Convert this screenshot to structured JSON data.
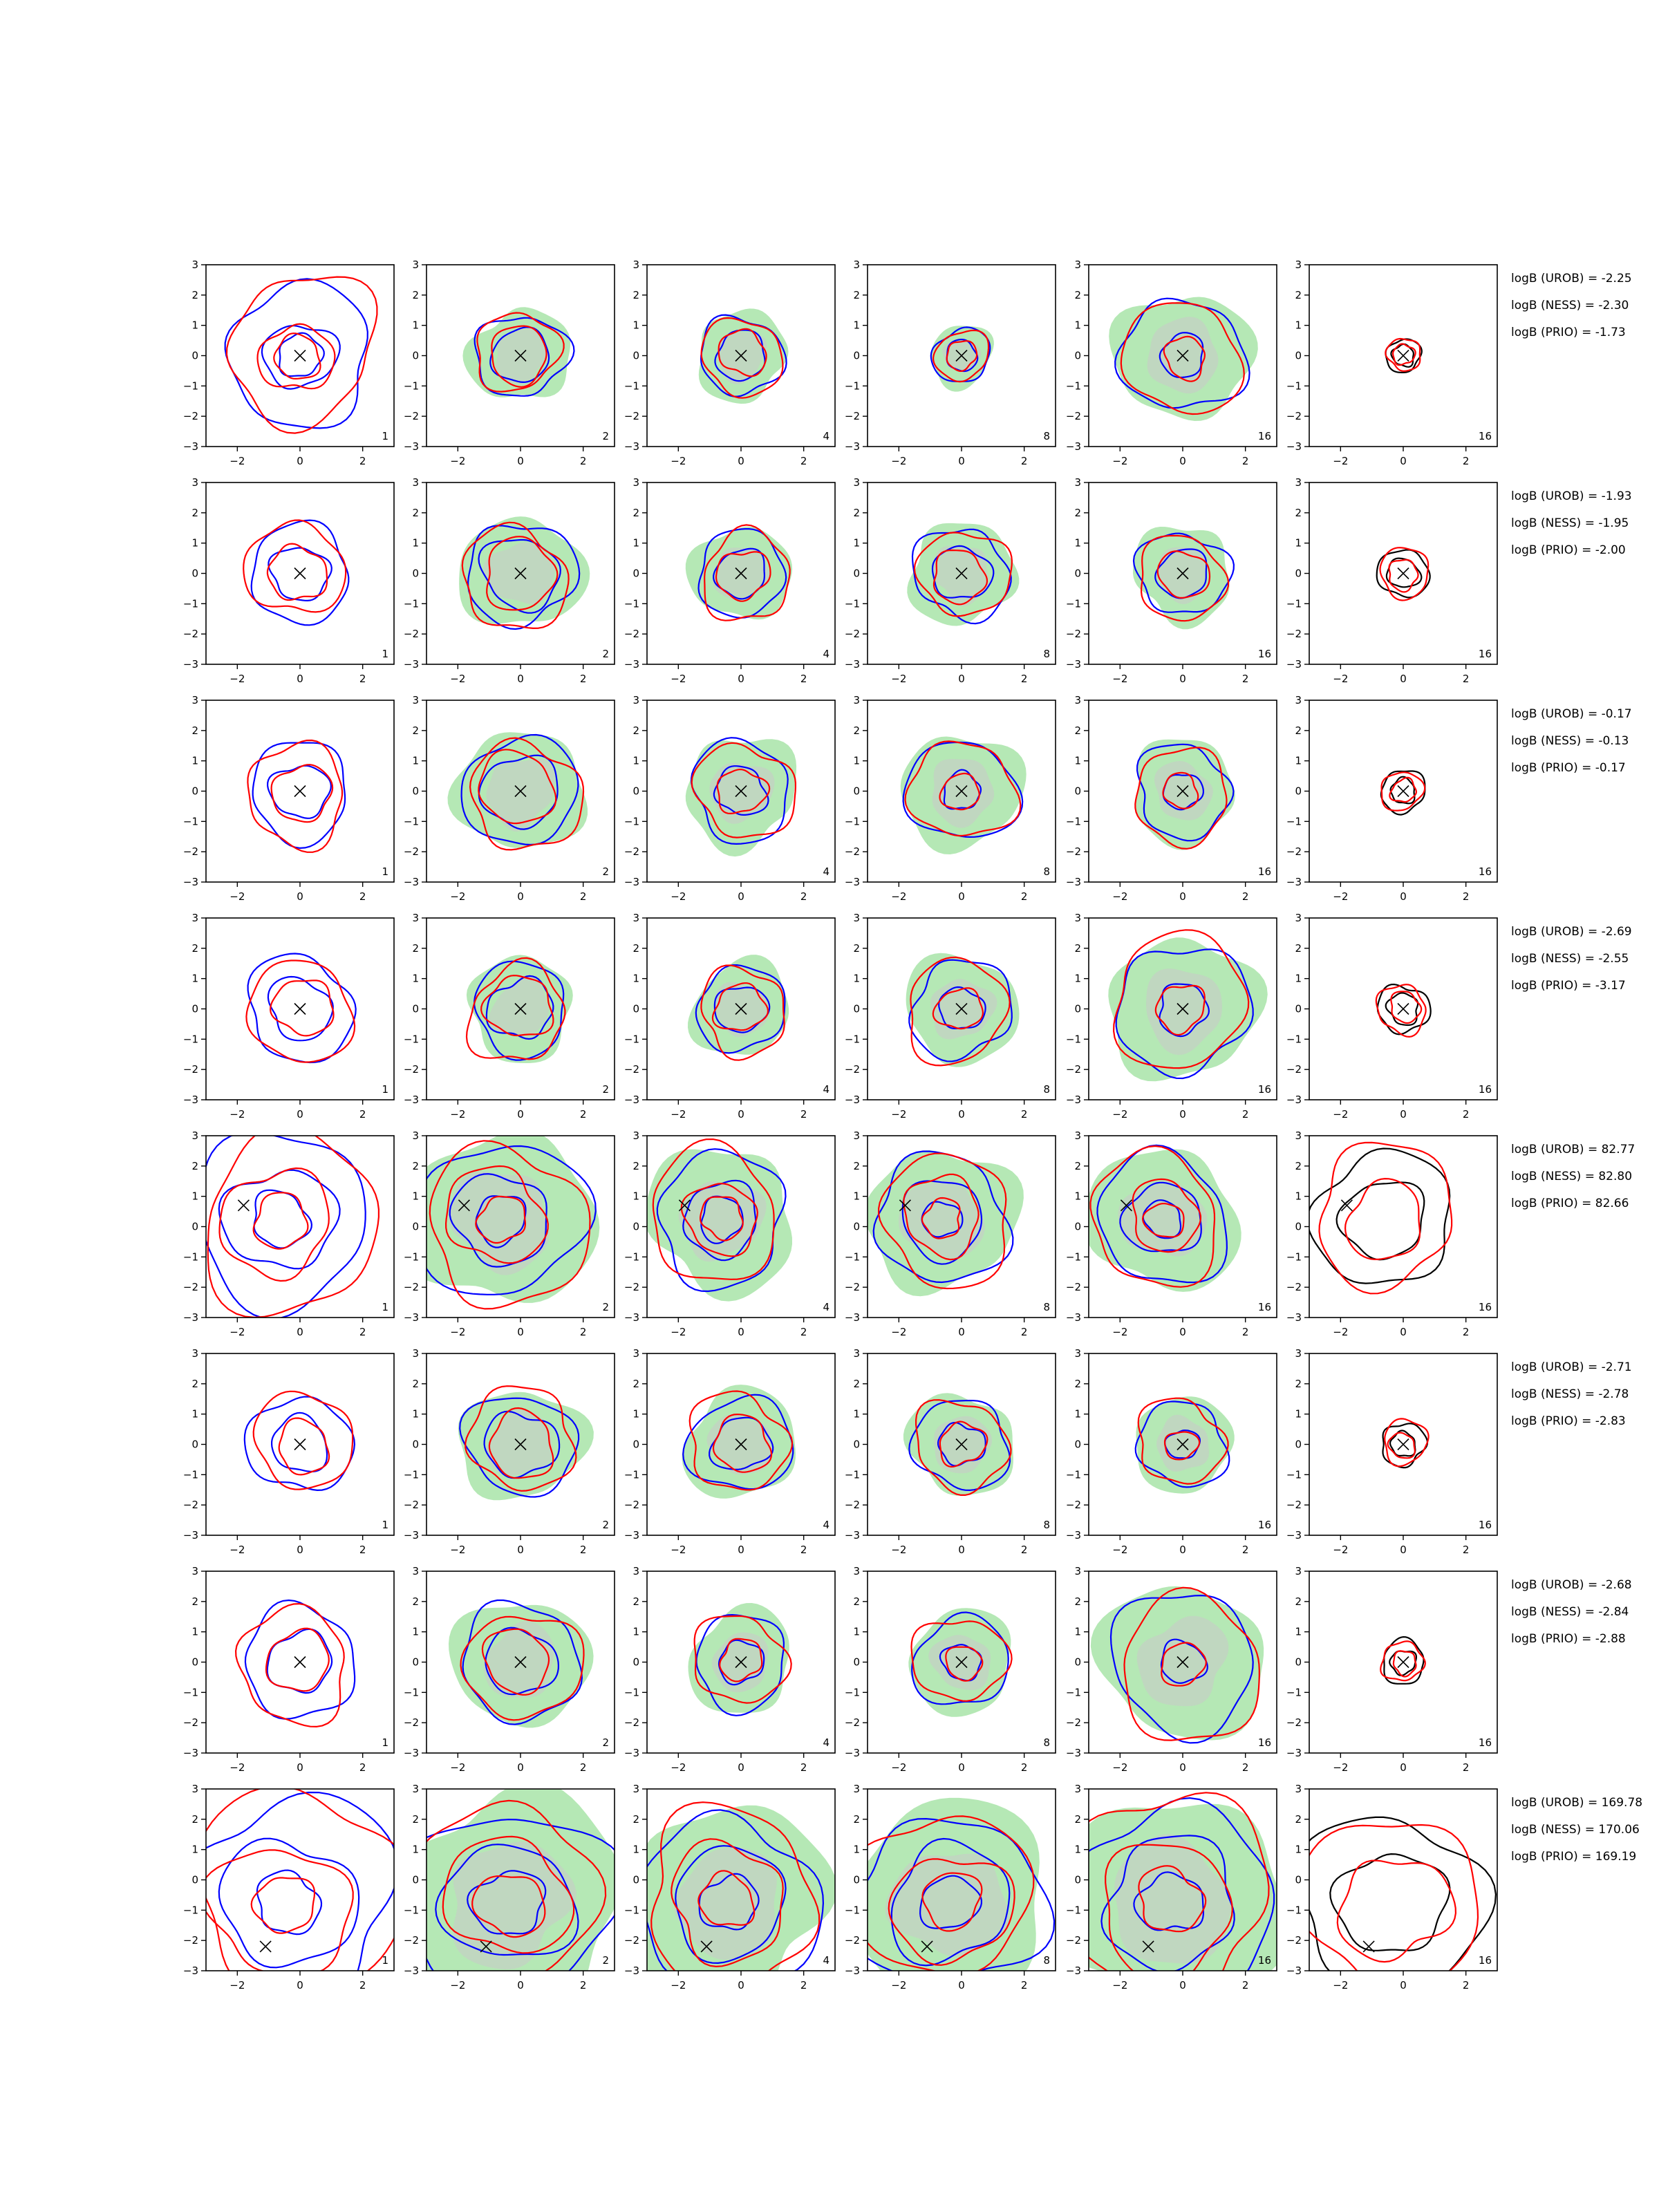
{
  "figure": {
    "description_labels": {
      "x_ticks": [
        "−2",
        "0",
        "2"
      ],
      "y_ticks": [
        "3",
        "2",
        "1",
        "0",
        "−1",
        "−2",
        "−3"
      ]
    }
  },
  "colors": {
    "series_blue": "#0000ff",
    "series_red": "#ff0000",
    "series_black": "#000000",
    "fill_green": "#b5e8b5",
    "fill_gray": "#c8c8c8",
    "marker": "#000000"
  },
  "chart_data": {
    "type": "contour-grid",
    "rows": 8,
    "cols": 6,
    "xlim": [
      -3,
      3
    ],
    "ylim": [
      -3,
      3
    ],
    "x_ticks": [
      -2,
      0,
      2
    ],
    "y_ticks": [
      -3,
      -2,
      -1,
      0,
      1,
      2,
      3
    ],
    "panel_labels": [
      "1",
      "2",
      "4",
      "8",
      "16",
      "16"
    ],
    "col_styles": [
      {
        "fill": false,
        "lines": [
          "blue",
          "red"
        ]
      },
      {
        "fill": true,
        "lines": [
          "blue",
          "red"
        ]
      },
      {
        "fill": true,
        "lines": [
          "blue",
          "red"
        ]
      },
      {
        "fill": true,
        "lines": [
          "blue",
          "red"
        ]
      },
      {
        "fill": true,
        "lines": [
          "blue",
          "red"
        ]
      },
      {
        "fill": false,
        "lines": [
          "black",
          "red"
        ]
      }
    ],
    "rows_data": [
      {
        "marker": [
          0,
          0
        ],
        "annotations": [
          "logB (UROB) = -2.25",
          "logB (NESS) = -2.30",
          "logB (PRIO) = -1.73"
        ],
        "radii": [
          [
            2.3,
            1.1,
            0.7
          ],
          [
            1.4,
            0.9
          ],
          [
            1.3,
            0.8
          ],
          [
            0.9,
            0.5
          ],
          [
            1.9,
            0.7
          ],
          [
            0.55,
            0.35
          ]
        ]
      },
      {
        "marker": [
          0,
          0
        ],
        "annotations": [
          "logB (UROB) = -1.93",
          "logB (NESS) = -1.95",
          "logB (PRIO) = -2.00"
        ],
        "radii": [
          [
            1.6,
            0.9
          ],
          [
            1.7,
            1.2
          ],
          [
            1.4,
            0.8
          ],
          [
            1.5,
            0.9
          ],
          [
            1.4,
            0.8
          ],
          [
            0.8,
            0.5
          ]
        ]
      },
      {
        "marker": [
          0,
          0
        ],
        "annotations": [
          "logB (UROB) = -0.17",
          "logB (NESS) = -0.13",
          "logB (PRIO) = -0.17"
        ],
        "radii": [
          [
            1.6,
            0.9
          ],
          [
            1.8,
            1.2
          ],
          [
            1.6,
            0.8
          ],
          [
            1.7,
            0.6
          ],
          [
            1.5,
            0.6
          ],
          [
            0.7,
            0.4
          ]
        ]
      },
      {
        "marker": [
          0,
          0
        ],
        "annotations": [
          "logB (UROB) = -2.69",
          "logB (NESS) = -2.55",
          "logB (PRIO) = -3.17"
        ],
        "radii": [
          [
            1.7,
            1.0
          ],
          [
            1.5,
            1.0
          ],
          [
            1.4,
            0.8
          ],
          [
            1.6,
            0.7
          ],
          [
            2.1,
            0.8
          ],
          [
            0.8,
            0.5
          ]
        ]
      },
      {
        "marker": [
          -1.8,
          0.7
        ],
        "annotations": [
          "logB (UROB) = 82.77",
          "logB (NESS) = 82.80",
          "logB (PRIO) = 82.66"
        ],
        "radii": [
          [
            2.8,
            1.7,
            0.9
          ],
          [
            2.6,
            1.5,
            0.8
          ],
          [
            2.1,
            1.2,
            0.7
          ],
          [
            2.1,
            1.3,
            0.6
          ],
          [
            2.1,
            1.2,
            0.6
          ],
          [
            2.2,
            1.3
          ]
        ]
      },
      {
        "marker": [
          0,
          0
        ],
        "annotations": [
          "logB (UROB) = -2.71",
          "logB (NESS) = -2.78",
          "logB (PRIO) = -2.83"
        ],
        "radii": [
          [
            1.6,
            0.9
          ],
          [
            1.7,
            1.1
          ],
          [
            1.6,
            0.9
          ],
          [
            1.5,
            0.7
          ],
          [
            1.4,
            0.5
          ],
          [
            0.7,
            0.4
          ]
        ]
      },
      {
        "marker": [
          0,
          0
        ],
        "annotations": [
          "logB (UROB) = -2.68",
          "logB (NESS) = -2.84",
          "logB (PRIO) = -2.88"
        ],
        "radii": [
          [
            1.8,
            1.0
          ],
          [
            1.9,
            1.1
          ],
          [
            1.5,
            0.7
          ],
          [
            1.5,
            0.6
          ],
          [
            2.3,
            0.7
          ],
          [
            0.7,
            0.4
          ]
        ]
      },
      {
        "marker": [
          -1.1,
          -2.2
        ],
        "annotations": [
          "logB (UROB) = 169.78",
          "logB (NESS) = 170.06",
          "logB (PRIO) = 169.19"
        ],
        "radii": [
          [
            3.4,
            2.1,
            1.0
          ],
          [
            3.2,
            2.0,
            1.1
          ],
          [
            2.8,
            1.8,
            0.9
          ],
          [
            2.9,
            1.9,
            0.9
          ],
          [
            3.2,
            2.1,
            1.0
          ],
          [
            2.9,
            1.7
          ]
        ]
      }
    ]
  }
}
